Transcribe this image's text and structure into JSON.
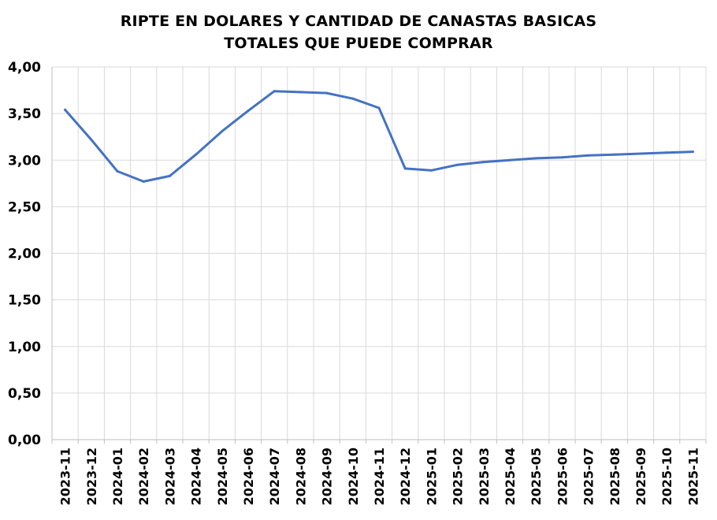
{
  "chart_data": {
    "type": "line",
    "title_lines": [
      "RIPTE EN DOLARES Y CANTIDAD DE CANASTAS BASICAS",
      "TOTALES QUE PUEDE COMPRAR"
    ],
    "xlabel": "",
    "ylabel": "",
    "categories": [
      "2023-11",
      "2023-12",
      "2024-01",
      "2024-02",
      "2024-03",
      "2024-04",
      "2024-05",
      "2024-06",
      "2024-07",
      "2024-08",
      "2024-09",
      "2024-10",
      "2024-11",
      "2024-12",
      "2025-01",
      "2025-02",
      "2025-03",
      "2025-04",
      "2025-05",
      "2025-06",
      "2025-07",
      "2025-08",
      "2025-09",
      "2025-10",
      "2025-11"
    ],
    "series": [
      {
        "values": [
          3.54,
          3.22,
          2.88,
          2.77,
          2.83,
          3.06,
          3.31,
          3.53,
          3.74,
          3.73,
          3.72,
          3.66,
          3.56,
          2.91,
          2.89,
          2.95,
          2.98,
          3.0,
          3.02,
          3.03,
          3.05,
          3.06,
          3.07,
          3.08,
          3.09
        ],
        "color": "#4472C4"
      }
    ],
    "ylim": [
      0,
      4
    ],
    "yticks": [
      0,
      0.5,
      1,
      1.5,
      2,
      2.5,
      3,
      3.5,
      4
    ],
    "ytick_labels": [
      "0,00",
      "0,50",
      "1,00",
      "1,50",
      "2,00",
      "2,50",
      "3,00",
      "3,50",
      "4,00"
    ],
    "grid": true,
    "legend": "none",
    "grid_color": "#D9D9D9",
    "axis_color": "#BFBFBF"
  }
}
